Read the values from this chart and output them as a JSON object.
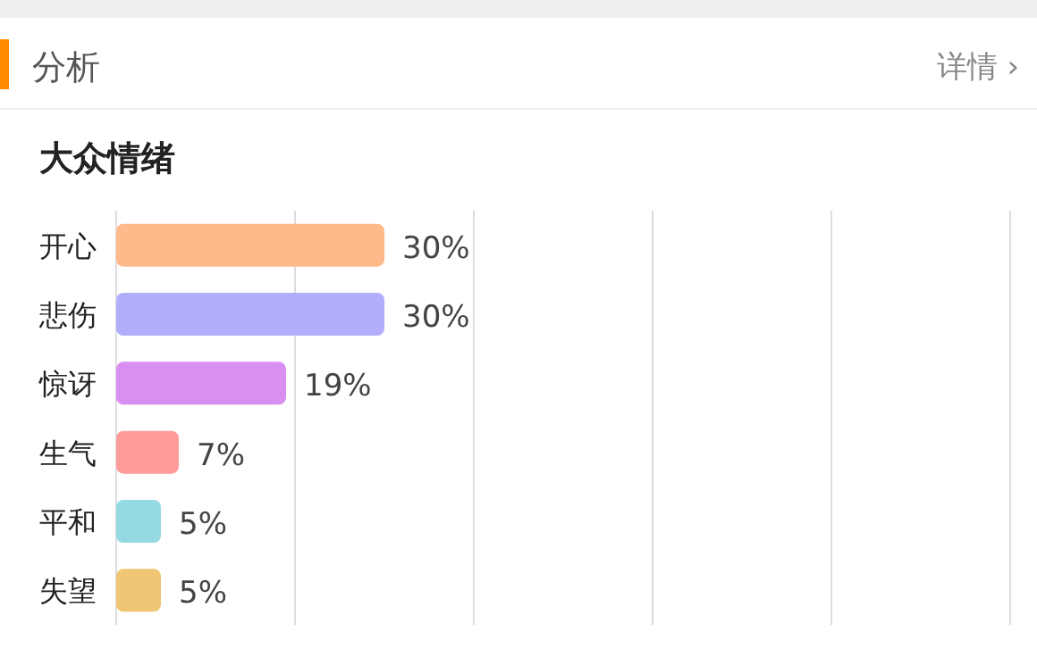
{
  "chart_data": {
    "type": "bar",
    "orientation": "horizontal",
    "title": "大众情绪",
    "subtitle": "分析",
    "annotations": [
      "详情 ›"
    ],
    "categories": [
      "开心",
      "悲伤",
      "惊讶",
      "生气",
      "平和",
      "失望"
    ],
    "values": [
      30,
      30,
      19,
      7,
      5,
      5
    ],
    "colors": [
      "#ffb98a",
      "#b3aefc",
      "#d98ef2",
      "#fe9c9c",
      "#95d9e3",
      "#f0c674"
    ],
    "value_labels": [
      "30%",
      "30%",
      "19%",
      "7%",
      "5%",
      "5%"
    ],
    "xlim": [
      0,
      100
    ],
    "xticks": [
      {
        "value": 0,
        "label": null
      },
      {
        "value": 20,
        "label": null
      },
      {
        "value": 40,
        "label": null
      },
      {
        "value": 60,
        "label": null
      },
      {
        "value": 80,
        "label": null
      },
      {
        "value": 100,
        "label": null
      }
    ],
    "grid": "x",
    "tick_labels": "y"
  }
}
